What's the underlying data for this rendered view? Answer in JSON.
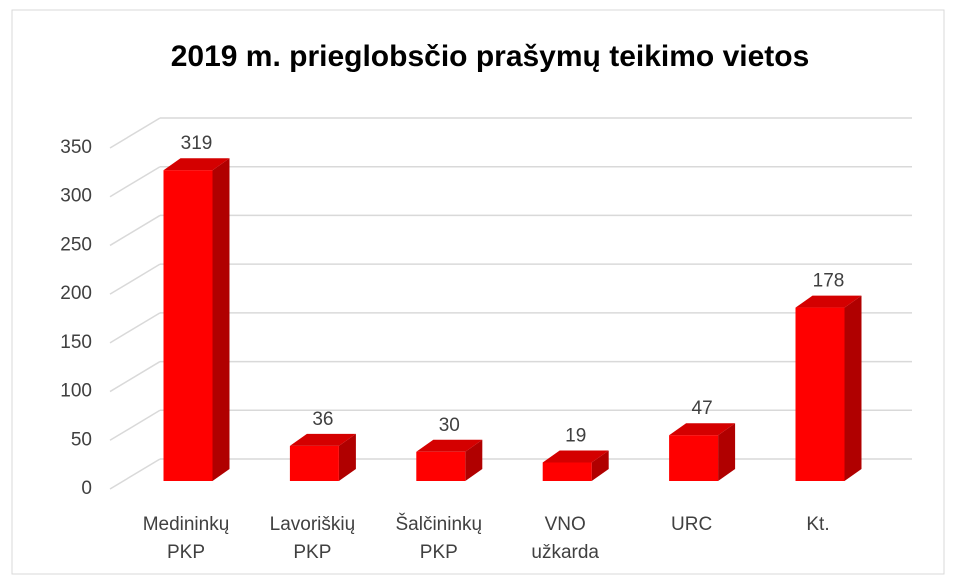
{
  "chart_data": {
    "type": "bar3d",
    "title": "2019 m. prieglobsčio prašymų teikimo vietos",
    "categories": [
      [
        "Medininkų",
        "PKP"
      ],
      [
        "Lavoriškių",
        "PKP"
      ],
      [
        "Šalčininkų",
        "PKP"
      ],
      [
        "VNO",
        "užkarda"
      ],
      [
        "URC"
      ],
      [
        "Kt."
      ]
    ],
    "values": [
      319,
      36,
      30,
      19,
      47,
      178
    ],
    "color": "#ff0000",
    "ylim": [
      0,
      350
    ],
    "yticks": [
      0,
      50,
      100,
      150,
      200,
      250,
      300,
      350
    ],
    "grid": true
  }
}
